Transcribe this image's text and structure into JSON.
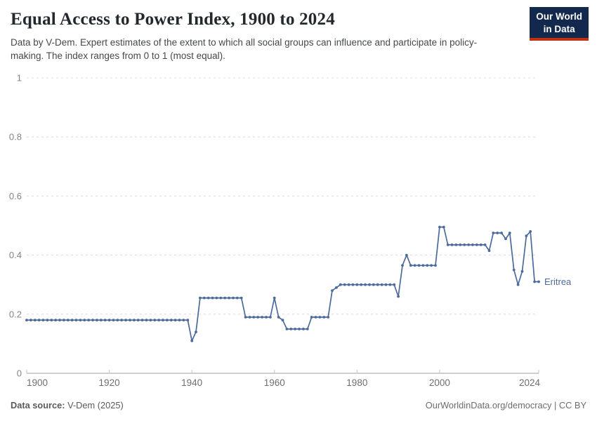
{
  "header": {
    "title": "Equal Access to Power Index, 1900 to 2024",
    "subtitle": "Data by V-Dem. Expert estimates of the extent to which all social groups can influence and participate in policy-making. The index ranges from 0 to 1 (most equal).",
    "logo": {
      "line1": "Our World",
      "line2": "in Data",
      "bg_color": "#12294D",
      "accent_color": "#C0310F"
    }
  },
  "footer": {
    "source_label": "Data source:",
    "source_value": " V-Dem (2025)",
    "credit": "OurWorldinData.org/democracy | CC BY"
  },
  "chart_data": {
    "type": "line",
    "title": "Equal Access to Power Index, 1900 to 2024",
    "entity": "Eritrea",
    "line_color": "#4C6A9C",
    "xlabel": "",
    "ylabel": "",
    "xlim": [
      1900,
      2024
    ],
    "ylim": [
      0,
      1
    ],
    "xticks": [
      1900,
      1920,
      1940,
      1960,
      1980,
      2000,
      2024
    ],
    "yticks": [
      0,
      0.2,
      0.4,
      0.6,
      0.8,
      1
    ],
    "grid": "dashed-horizontal",
    "legend_position": "end-of-line-label",
    "points": [
      [
        1900,
        0.18
      ],
      [
        1901,
        0.18
      ],
      [
        1902,
        0.18
      ],
      [
        1903,
        0.18
      ],
      [
        1904,
        0.18
      ],
      [
        1905,
        0.18
      ],
      [
        1906,
        0.18
      ],
      [
        1907,
        0.18
      ],
      [
        1908,
        0.18
      ],
      [
        1909,
        0.18
      ],
      [
        1910,
        0.18
      ],
      [
        1911,
        0.18
      ],
      [
        1912,
        0.18
      ],
      [
        1913,
        0.18
      ],
      [
        1914,
        0.18
      ],
      [
        1915,
        0.18
      ],
      [
        1916,
        0.18
      ],
      [
        1917,
        0.18
      ],
      [
        1918,
        0.18
      ],
      [
        1919,
        0.18
      ],
      [
        1920,
        0.18
      ],
      [
        1921,
        0.18
      ],
      [
        1922,
        0.18
      ],
      [
        1923,
        0.18
      ],
      [
        1924,
        0.18
      ],
      [
        1925,
        0.18
      ],
      [
        1926,
        0.18
      ],
      [
        1927,
        0.18
      ],
      [
        1928,
        0.18
      ],
      [
        1929,
        0.18
      ],
      [
        1930,
        0.18
      ],
      [
        1931,
        0.18
      ],
      [
        1932,
        0.18
      ],
      [
        1933,
        0.18
      ],
      [
        1934,
        0.18
      ],
      [
        1935,
        0.18
      ],
      [
        1936,
        0.18
      ],
      [
        1937,
        0.18
      ],
      [
        1938,
        0.18
      ],
      [
        1939,
        0.18
      ],
      [
        1940,
        0.11
      ],
      [
        1941,
        0.14
      ],
      [
        1942,
        0.255
      ],
      [
        1943,
        0.255
      ],
      [
        1944,
        0.255
      ],
      [
        1945,
        0.255
      ],
      [
        1946,
        0.255
      ],
      [
        1947,
        0.255
      ],
      [
        1948,
        0.255
      ],
      [
        1949,
        0.255
      ],
      [
        1950,
        0.255
      ],
      [
        1951,
        0.255
      ],
      [
        1952,
        0.255
      ],
      [
        1953,
        0.19
      ],
      [
        1954,
        0.19
      ],
      [
        1955,
        0.19
      ],
      [
        1956,
        0.19
      ],
      [
        1957,
        0.19
      ],
      [
        1958,
        0.19
      ],
      [
        1959,
        0.19
      ],
      [
        1960,
        0.255
      ],
      [
        1961,
        0.19
      ],
      [
        1962,
        0.18
      ],
      [
        1963,
        0.15
      ],
      [
        1964,
        0.15
      ],
      [
        1965,
        0.15
      ],
      [
        1966,
        0.15
      ],
      [
        1967,
        0.15
      ],
      [
        1968,
        0.15
      ],
      [
        1969,
        0.19
      ],
      [
        1970,
        0.19
      ],
      [
        1971,
        0.19
      ],
      [
        1972,
        0.19
      ],
      [
        1973,
        0.19
      ],
      [
        1974,
        0.28
      ],
      [
        1975,
        0.29
      ],
      [
        1976,
        0.3
      ],
      [
        1977,
        0.3
      ],
      [
        1978,
        0.3
      ],
      [
        1979,
        0.3
      ],
      [
        1980,
        0.3
      ],
      [
        1981,
        0.3
      ],
      [
        1982,
        0.3
      ],
      [
        1983,
        0.3
      ],
      [
        1984,
        0.3
      ],
      [
        1985,
        0.3
      ],
      [
        1986,
        0.3
      ],
      [
        1987,
        0.3
      ],
      [
        1988,
        0.3
      ],
      [
        1989,
        0.3
      ],
      [
        1990,
        0.26
      ],
      [
        1991,
        0.365
      ],
      [
        1992,
        0.4
      ],
      [
        1993,
        0.365
      ],
      [
        1994,
        0.365
      ],
      [
        1995,
        0.365
      ],
      [
        1996,
        0.365
      ],
      [
        1997,
        0.365
      ],
      [
        1998,
        0.365
      ],
      [
        1999,
        0.365
      ],
      [
        2000,
        0.495
      ],
      [
        2001,
        0.495
      ],
      [
        2002,
        0.435
      ],
      [
        2003,
        0.435
      ],
      [
        2004,
        0.435
      ],
      [
        2005,
        0.435
      ],
      [
        2006,
        0.435
      ],
      [
        2007,
        0.435
      ],
      [
        2008,
        0.435
      ],
      [
        2009,
        0.435
      ],
      [
        2010,
        0.435
      ],
      [
        2011,
        0.435
      ],
      [
        2012,
        0.415
      ],
      [
        2013,
        0.475
      ],
      [
        2014,
        0.475
      ],
      [
        2015,
        0.475
      ],
      [
        2016,
        0.455
      ],
      [
        2017,
        0.475
      ],
      [
        2018,
        0.35
      ],
      [
        2019,
        0.3
      ],
      [
        2020,
        0.345
      ],
      [
        2021,
        0.465
      ],
      [
        2022,
        0.48
      ],
      [
        2023,
        0.31
      ],
      [
        2024,
        0.31
      ]
    ]
  }
}
